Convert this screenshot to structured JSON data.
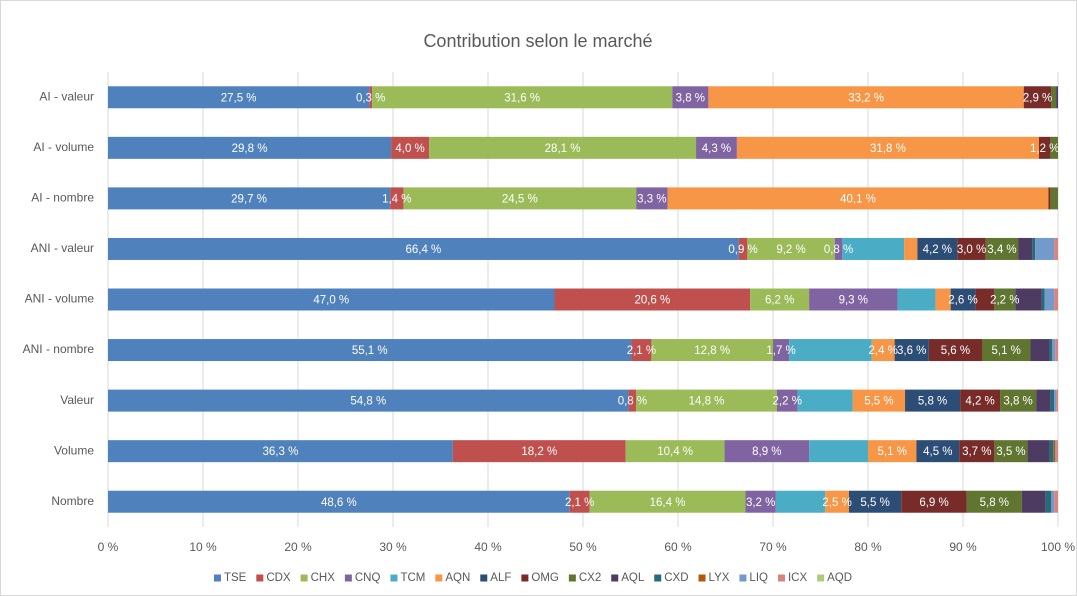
{
  "chart_data": {
    "type": "stacked-bar-horizontal",
    "title": "Contribution selon le marché",
    "categories": [
      "AI - valeur",
      "AI - volume",
      "AI - nombre",
      "ANI - valeur",
      "ANI - volume",
      "ANI - nombre",
      "Valeur",
      "Volume",
      "Nombre"
    ],
    "xlim": [
      0,
      100
    ],
    "xticks": [
      {
        "value": 0,
        "label": "0 %"
      },
      {
        "value": 10,
        "label": "10 %"
      },
      {
        "value": 20,
        "label": "20 %"
      },
      {
        "value": 30,
        "label": "30 %"
      },
      {
        "value": 40,
        "label": "40 %"
      },
      {
        "value": 50,
        "label": "50 %"
      },
      {
        "value": 60,
        "label": "60 %"
      },
      {
        "value": 70,
        "label": "70 %"
      },
      {
        "value": 80,
        "label": "80 %"
      },
      {
        "value": 90,
        "label": "90 %"
      },
      {
        "value": 100,
        "label": "100 %"
      }
    ],
    "grid": true,
    "legend": "bottom",
    "series": [
      {
        "name": "TSE",
        "color": "#4f81bd",
        "values": [
          27.5,
          29.8,
          29.7,
          66.4,
          47.0,
          55.1,
          54.8,
          36.3,
          48.6
        ],
        "value_labels": [
          "27,5 %",
          "29,8 %",
          "29,7 %",
          "66,4 %",
          "47,0 %",
          "55,1 %",
          "54,8 %",
          "36,3 %",
          "48,6 %"
        ]
      },
      {
        "name": "CDX",
        "color": "#c0504d",
        "values": [
          0.3,
          4.0,
          1.4,
          0.9,
          20.6,
          2.1,
          0.8,
          18.2,
          2.1
        ],
        "value_labels": [
          "0,3 %",
          "4,0 %",
          "1,4 %",
          "0,9 %",
          "20,6 %",
          "2,1 %",
          "0,8 %",
          "18,2 %",
          "2,1 %"
        ]
      },
      {
        "name": "CHX",
        "color": "#9bbb59",
        "values": [
          31.6,
          28.1,
          24.5,
          9.2,
          6.2,
          12.8,
          14.8,
          10.4,
          16.4
        ],
        "value_labels": [
          "31,6 %",
          "28,1 %",
          "24,5 %",
          "9,2 %",
          "6,2 %",
          "12,8 %",
          "14,8 %",
          "10,4 %",
          "16,4 %"
        ]
      },
      {
        "name": "CNQ",
        "color": "#8064a2",
        "values": [
          3.8,
          4.3,
          3.3,
          0.8,
          9.3,
          1.7,
          2.2,
          8.9,
          3.2
        ],
        "value_labels": [
          "3,8 %",
          "4,3 %",
          "3,3 %",
          "0,8 %",
          "9,3 %",
          "1,7 %",
          "2,2 %",
          "8,9 %",
          "3,2 %"
        ]
      },
      {
        "name": "TCM",
        "color": "#4bacc6",
        "values": [
          0,
          0,
          0,
          6.5,
          4.0,
          8.7,
          5.8,
          6.2,
          5.2
        ]
      },
      {
        "name": "AQN",
        "color": "#f79646",
        "values": [
          33.2,
          31.8,
          40.1,
          1.4,
          1.6,
          2.4,
          5.5,
          5.1,
          2.5
        ],
        "value_labels": [
          "33,2 %",
          "31,8 %",
          "40,1 %",
          null,
          null,
          "2,4 %",
          "5,5 %",
          "5,1 %",
          "2,5 %"
        ]
      },
      {
        "name": "ALF",
        "color": "#2c4d75",
        "values": [
          0,
          0,
          0,
          4.2,
          2.6,
          3.6,
          5.8,
          4.5,
          5.5
        ],
        "value_labels": [
          null,
          null,
          null,
          "4,2 %",
          "2,6 %",
          "3,6 %",
          "5,8 %",
          "4,5 %",
          "5,5 %"
        ]
      },
      {
        "name": "OMG",
        "color": "#772c2a",
        "values": [
          2.9,
          1.2,
          0.2,
          3.0,
          2.0,
          5.6,
          4.2,
          3.7,
          6.9
        ],
        "value_labels": [
          "2,9 %",
          "1,2 %",
          null,
          "3,0 %",
          null,
          "5,6 %",
          "4,2 %",
          "3,7 %",
          "6,9 %"
        ]
      },
      {
        "name": "CX2",
        "color": "#5f7530",
        "values": [
          0.5,
          0.8,
          0.8,
          3.4,
          2.2,
          5.1,
          3.8,
          3.5,
          5.8
        ],
        "value_labels": [
          null,
          null,
          null,
          "3,4 %",
          "2,2 %",
          "5,1 %",
          "3,8 %",
          "3,5 %",
          "5,8 %"
        ]
      },
      {
        "name": "AQL",
        "color": "#4d3b62",
        "values": [
          0.2,
          0,
          0,
          1.5,
          2.8,
          2.0,
          1.5,
          2.3,
          2.5
        ]
      },
      {
        "name": "CXD",
        "color": "#276a7c",
        "values": [
          0,
          0,
          0,
          0.3,
          0.3,
          0.3,
          0.4,
          0.4,
          0.6
        ]
      },
      {
        "name": "LYX",
        "color": "#b65708",
        "values": [
          0,
          0,
          0,
          0,
          0,
          0,
          0,
          0.2,
          0
        ]
      },
      {
        "name": "LIQ",
        "color": "#729aca",
        "values": [
          0,
          0,
          0,
          2.0,
          1.0,
          0.3,
          0.2,
          0.1,
          0.3
        ]
      },
      {
        "name": "ICX",
        "color": "#d9827f",
        "values": [
          0,
          0,
          0,
          0.4,
          0.4,
          0.3,
          0.2,
          0.2,
          0.4
        ]
      },
      {
        "name": "AQD",
        "color": "#afc97a",
        "values": [
          0,
          0,
          0,
          0,
          0,
          0,
          0,
          0,
          0
        ]
      }
    ]
  }
}
